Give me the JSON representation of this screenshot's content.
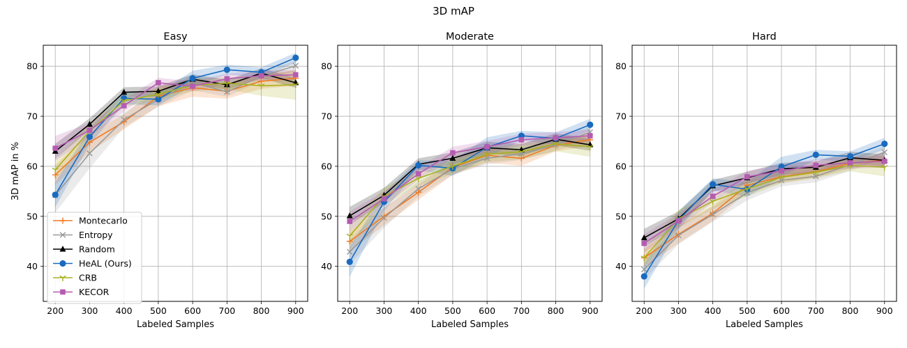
{
  "suptitle": "3D mAP",
  "ylabel": "3D mAP in %",
  "xlabel": "Labeled Samples",
  "series_styles": [
    {
      "name": "Montecarlo",
      "color": "#f07a24",
      "marker": "plus"
    },
    {
      "name": "Entropy",
      "color": "#999999",
      "marker": "x"
    },
    {
      "name": "Random",
      "color": "#000000",
      "marker": "triangle"
    },
    {
      "name": "HeAL (Ours)",
      "color": "#1a6bbf",
      "marker": "circle"
    },
    {
      "name": "CRB",
      "color": "#a8b021",
      "marker": "tri_down"
    },
    {
      "name": "KECOR",
      "color": "#b55cb0",
      "marker": "square"
    }
  ],
  "legend": {
    "placement": "lower-left of first panel",
    "entries": [
      "Montecarlo",
      "Entropy",
      "Random",
      "HeAL (Ours)",
      "CRB",
      "KECOR"
    ]
  },
  "chart_data": [
    {
      "type": "line",
      "title": "Easy",
      "xlabel": "Labeled Samples",
      "ylabel": "3D mAP in %",
      "x": [
        200,
        300,
        400,
        500,
        600,
        700,
        800,
        900
      ],
      "xticks": [
        "200",
        "300",
        "400",
        "500",
        "600",
        "700",
        "800",
        "900"
      ],
      "yticks": [
        "40",
        "50",
        "60",
        "70",
        "80"
      ],
      "xlim": [
        165,
        935
      ],
      "ylim": [
        33,
        84.2
      ],
      "grid": true,
      "series": [
        {
          "name": "Montecarlo",
          "values": [
            58.3,
            64.8,
            68.9,
            74.0,
            75.7,
            75.0,
            77.0,
            77.6
          ],
          "band": [
            2.0,
            2.0,
            1.5,
            2.0,
            1.8,
            1.5,
            1.5,
            1.5
          ]
        },
        {
          "name": "Entropy",
          "values": [
            54.2,
            62.6,
            69.3,
            73.4,
            76.7,
            74.9,
            78.0,
            80.1
          ],
          "band": [
            3.5,
            3.0,
            1.5,
            1.5,
            1.5,
            1.0,
            1.0,
            1.0
          ]
        },
        {
          "name": "Random",
          "values": [
            63.0,
            68.4,
            74.8,
            75.0,
            77.4,
            76.3,
            78.6,
            76.7
          ],
          "band": [
            1.5,
            1.2,
            1.0,
            1.0,
            1.0,
            1.0,
            1.0,
            1.0
          ]
        },
        {
          "name": "HeAL (Ours)",
          "values": [
            54.3,
            65.9,
            73.6,
            73.4,
            77.6,
            79.3,
            78.8,
            81.7
          ],
          "band": [
            2.5,
            1.5,
            1.2,
            1.2,
            1.5,
            1.0,
            1.0,
            1.0
          ]
        },
        {
          "name": "CRB",
          "values": [
            59.3,
            67.1,
            73.1,
            74.4,
            76.2,
            76.6,
            76.1,
            76.3
          ],
          "band": [
            2.0,
            1.5,
            1.2,
            1.2,
            1.2,
            1.2,
            2.0,
            3.0
          ]
        },
        {
          "name": "KECOR",
          "values": [
            63.6,
            67.2,
            72.1,
            76.7,
            76.0,
            77.5,
            78.1,
            78.3
          ],
          "band": [
            2.5,
            1.5,
            1.2,
            1.0,
            1.0,
            1.0,
            1.0,
            1.0
          ]
        }
      ]
    },
    {
      "type": "line",
      "title": "Moderate",
      "xlabel": "Labeled Samples",
      "ylabel": "",
      "x": [
        200,
        300,
        400,
        500,
        600,
        700,
        800,
        900
      ],
      "xticks": [
        "200",
        "300",
        "400",
        "500",
        "600",
        "700",
        "800",
        "900"
      ],
      "yticks": [
        "40",
        "50",
        "60",
        "70",
        "80"
      ],
      "xlim": [
        165,
        935
      ],
      "ylim": [
        33,
        84.2
      ],
      "grid": true,
      "series": [
        {
          "name": "Montecarlo",
          "values": [
            45.0,
            50.0,
            54.8,
            59.8,
            62.2,
            61.6,
            64.2,
            65.3
          ],
          "band": [
            2.0,
            1.8,
            1.5,
            1.5,
            1.5,
            1.5,
            1.2,
            1.2
          ]
        },
        {
          "name": "Entropy",
          "values": [
            42.9,
            49.7,
            55.5,
            59.5,
            61.6,
            62.5,
            64.3,
            66.8
          ],
          "band": [
            2.5,
            2.0,
            1.5,
            1.2,
            1.2,
            1.2,
            1.2,
            1.2
          ]
        },
        {
          "name": "Random",
          "values": [
            50.1,
            54.2,
            60.4,
            61.6,
            63.7,
            63.3,
            65.4,
            64.3
          ],
          "band": [
            1.8,
            1.5,
            1.2,
            1.2,
            1.2,
            1.2,
            1.2,
            1.2
          ]
        },
        {
          "name": "HeAL (Ours)",
          "values": [
            40.9,
            52.9,
            60.2,
            59.6,
            63.8,
            66.1,
            65.6,
            68.3
          ],
          "band": [
            3.0,
            1.8,
            1.0,
            1.5,
            2.0,
            1.0,
            1.2,
            1.2
          ]
        },
        {
          "name": "CRB",
          "values": [
            46.1,
            54.0,
            57.6,
            60.0,
            62.4,
            62.9,
            64.5,
            63.9
          ],
          "band": [
            2.0,
            1.8,
            1.5,
            1.5,
            1.5,
            1.5,
            1.5,
            2.0
          ]
        },
        {
          "name": "KECOR",
          "values": [
            49.0,
            53.5,
            58.5,
            62.7,
            63.9,
            65.3,
            65.7,
            66.1
          ],
          "band": [
            2.0,
            1.5,
            1.2,
            1.2,
            1.2,
            1.2,
            1.2,
            1.2
          ]
        }
      ]
    },
    {
      "type": "line",
      "title": "Hard",
      "xlabel": "Labeled Samples",
      "ylabel": "",
      "x": [
        200,
        300,
        400,
        500,
        600,
        700,
        800,
        900
      ],
      "xticks": [
        "200",
        "300",
        "400",
        "500",
        "600",
        "700",
        "800",
        "900"
      ],
      "yticks": [
        "40",
        "50",
        "60",
        "70",
        "80"
      ],
      "xlim": [
        165,
        935
      ],
      "ylim": [
        33,
        84.2
      ],
      "grid": true,
      "series": [
        {
          "name": "Montecarlo",
          "values": [
            41.7,
            46.4,
            50.6,
            56.2,
            57.9,
            58.9,
            60.6,
            61.2
          ],
          "band": [
            1.8,
            1.8,
            1.5,
            1.5,
            1.2,
            1.2,
            1.0,
            1.0
          ]
        },
        {
          "name": "Entropy",
          "values": [
            39.4,
            46.2,
            50.4,
            54.7,
            57.2,
            58.0,
            60.3,
            62.8
          ],
          "band": [
            2.0,
            1.8,
            1.5,
            1.5,
            1.2,
            1.2,
            1.2,
            1.2
          ]
        },
        {
          "name": "Random",
          "values": [
            45.7,
            49.5,
            56.1,
            57.7,
            59.5,
            59.8,
            61.7,
            61.2
          ],
          "band": [
            1.8,
            1.5,
            1.2,
            1.2,
            1.2,
            1.2,
            1.2,
            1.2
          ]
        },
        {
          "name": "HeAL (Ours)",
          "values": [
            38.0,
            49.2,
            56.4,
            55.4,
            59.9,
            62.3,
            62.0,
            64.5
          ],
          "band": [
            2.5,
            1.8,
            1.2,
            1.5,
            2.0,
            1.0,
            1.0,
            1.2
          ]
        },
        {
          "name": "CRB",
          "values": [
            41.7,
            49.5,
            53.0,
            55.5,
            57.8,
            58.8,
            60.2,
            59.8
          ],
          "band": [
            1.8,
            1.8,
            1.5,
            1.5,
            1.2,
            1.2,
            1.2,
            1.8
          ]
        },
        {
          "name": "KECOR",
          "values": [
            44.6,
            49.1,
            54.0,
            57.9,
            59.1,
            60.2,
            60.7,
            61.0
          ],
          "band": [
            1.8,
            1.5,
            1.2,
            1.2,
            1.2,
            1.2,
            1.2,
            1.2
          ]
        }
      ]
    }
  ]
}
